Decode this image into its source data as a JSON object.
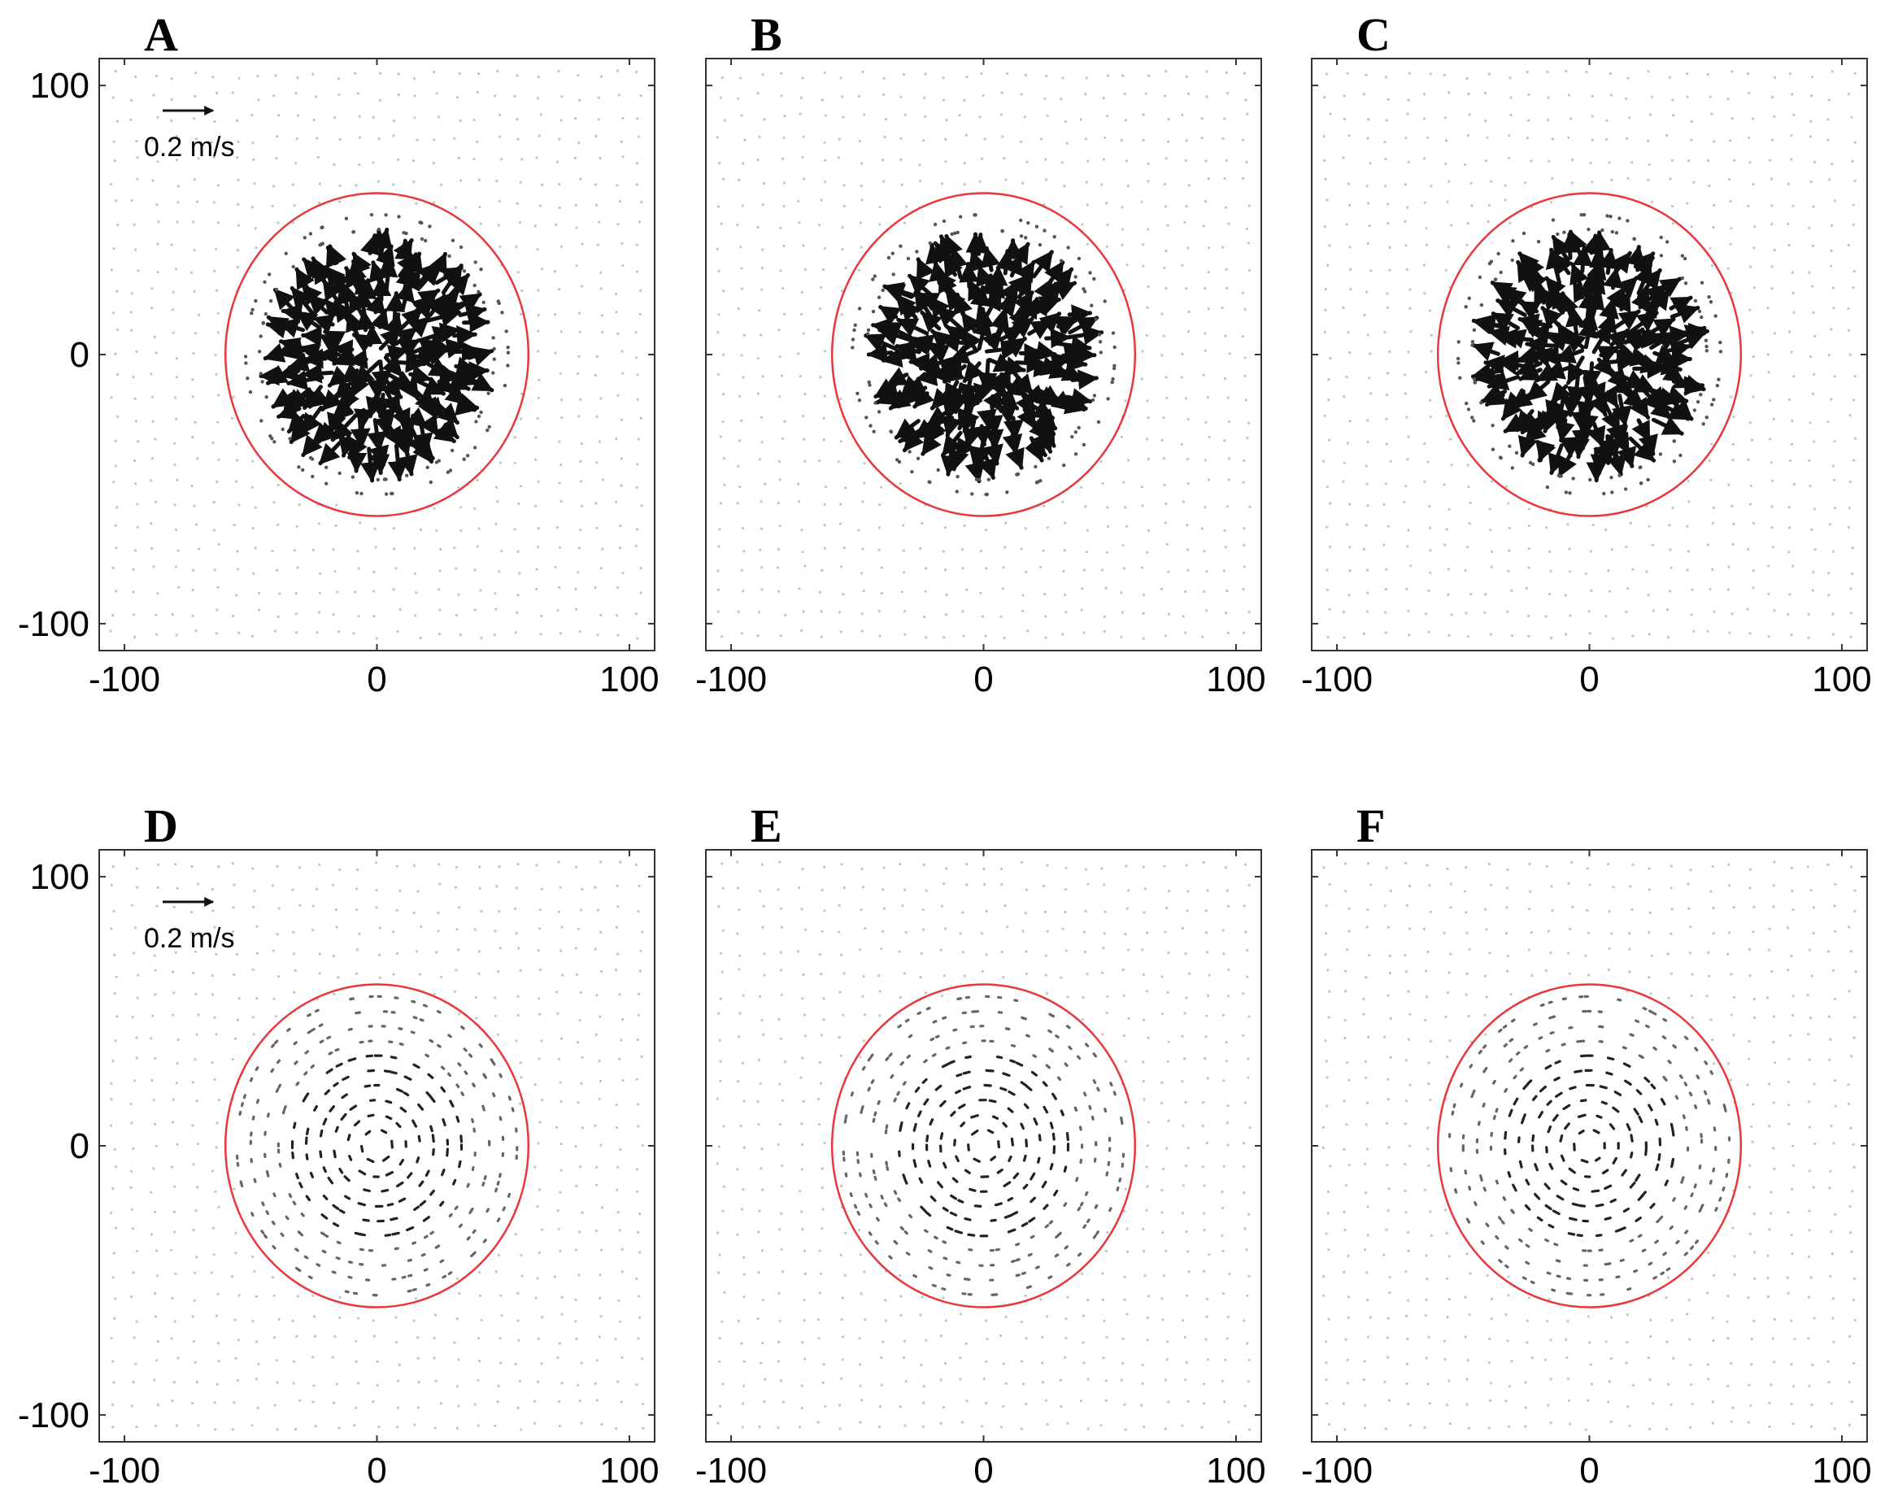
{
  "figure": {
    "colors": {
      "circle": "#e8373d",
      "arrow": "#111111",
      "faint": "#c4c4c4",
      "axis": "#333333"
    }
  },
  "chart_data": [
    {
      "type": "scatter",
      "panel_label": "A",
      "field": "radial",
      "xlim": [
        -110,
        110
      ],
      "ylim": [
        -110,
        110
      ],
      "xticks": [
        -100,
        0,
        100
      ],
      "yticks": [
        -100,
        0,
        100
      ],
      "xtick_labels": [
        "-100",
        "0",
        "100"
      ],
      "ytick_labels": [
        "100",
        "0",
        "-100"
      ],
      "circle": {
        "center": [
          0,
          0
        ],
        "radius": 60
      },
      "scale_arrow": {
        "value": 0.2,
        "label": "0.2 m/s"
      }
    },
    {
      "type": "scatter",
      "panel_label": "B",
      "field": "radial",
      "xlim": [
        -110,
        110
      ],
      "ylim": [
        -110,
        110
      ],
      "xticks": [
        -100,
        0,
        100
      ],
      "yticks": [
        -100,
        0,
        100
      ],
      "xtick_labels": [
        "-100",
        "0",
        "100"
      ],
      "ytick_labels": [],
      "circle": {
        "center": [
          0,
          0
        ],
        "radius": 60
      }
    },
    {
      "type": "scatter",
      "panel_label": "C",
      "field": "radial",
      "xlim": [
        -110,
        110
      ],
      "ylim": [
        -110,
        110
      ],
      "xticks": [
        -100,
        0,
        100
      ],
      "yticks": [
        -100,
        0,
        100
      ],
      "xtick_labels": [
        "-100",
        "0",
        "100"
      ],
      "ytick_labels": [],
      "circle": {
        "center": [
          0,
          0
        ],
        "radius": 60
      }
    },
    {
      "type": "scatter",
      "panel_label": "D",
      "field": "vortex",
      "xlim": [
        -110,
        110
      ],
      "ylim": [
        -110,
        110
      ],
      "xticks": [
        -100,
        0,
        100
      ],
      "yticks": [
        -100,
        0,
        100
      ],
      "xtick_labels": [
        "-100",
        "0",
        "100"
      ],
      "ytick_labels": [
        "100",
        "0",
        "-100"
      ],
      "circle": {
        "center": [
          0,
          0
        ],
        "radius": 60
      },
      "scale_arrow": {
        "value": 0.2,
        "label": "0.2 m/s"
      }
    },
    {
      "type": "scatter",
      "panel_label": "E",
      "field": "vortex",
      "xlim": [
        -110,
        110
      ],
      "ylim": [
        -110,
        110
      ],
      "xticks": [
        -100,
        0,
        100
      ],
      "yticks": [
        -100,
        0,
        100
      ],
      "xtick_labels": [
        "-100",
        "0",
        "100"
      ],
      "ytick_labels": [],
      "circle": {
        "center": [
          0,
          0
        ],
        "radius": 60
      }
    },
    {
      "type": "scatter",
      "panel_label": "F",
      "field": "vortex",
      "xlim": [
        -110,
        110
      ],
      "ylim": [
        -110,
        110
      ],
      "xticks": [
        -100,
        0,
        100
      ],
      "yticks": [
        -100,
        0,
        100
      ],
      "xtick_labels": [
        "-100",
        "0",
        "100"
      ],
      "ytick_labels": [],
      "circle": {
        "center": [
          0,
          0
        ],
        "radius": 60
      }
    }
  ]
}
